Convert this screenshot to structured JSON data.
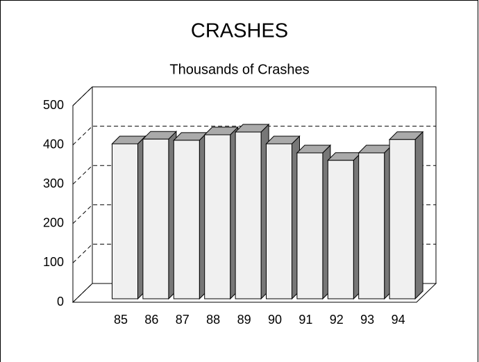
{
  "chart_data": {
    "type": "bar3d",
    "title": "CRASHES",
    "subtitle": "Thousands of Crashes",
    "categories": [
      "85",
      "86",
      "87",
      "88",
      "89",
      "90",
      "91",
      "92",
      "93",
      "94"
    ],
    "values": [
      394,
      406,
      403,
      417,
      424,
      394,
      371,
      352,
      371,
      405
    ],
    "color": "#f0f0f0",
    "ylim": [
      0,
      500
    ],
    "yticks": [
      0,
      100,
      200,
      300,
      400,
      500
    ],
    "grid": true
  }
}
